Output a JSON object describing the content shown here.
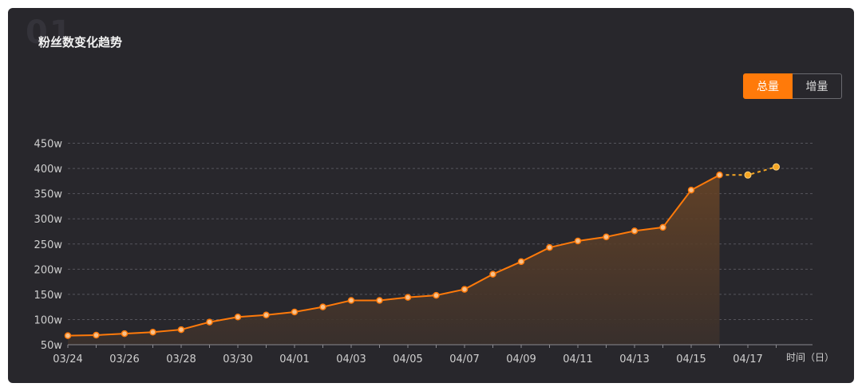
{
  "watermark": "01",
  "title": "粉丝数变化趋势",
  "toggle": {
    "total_label": "总量",
    "increment_label": "增量",
    "selected": "总量"
  },
  "colors": {
    "line": "#ff7a0a",
    "forecast": "#f5a623",
    "point_fill": "#f7c08a",
    "grid": "#55555c",
    "area_top": "#6a4526",
    "area_bottom": "#3a302c"
  },
  "chart_data": {
    "type": "line",
    "title": "粉丝数变化趋势",
    "xlabel": "时间（日）",
    "ylabel": "",
    "ylim": [
      50,
      450
    ],
    "y_unit": "w",
    "y_ticks": [
      "50w",
      "100w",
      "150w",
      "200w",
      "250w",
      "300w",
      "350w",
      "400w",
      "450w"
    ],
    "x_tick_labels": [
      "03/24",
      "03/26",
      "03/28",
      "03/30",
      "04/01",
      "04/03",
      "04/05",
      "04/07",
      "04/09",
      "04/11",
      "04/13",
      "04/15",
      "04/17"
    ],
    "grid": true,
    "x": [
      "03/24",
      "03/25",
      "03/26",
      "03/27",
      "03/28",
      "03/29",
      "03/30",
      "03/31",
      "04/01",
      "04/02",
      "04/03",
      "04/04",
      "04/05",
      "04/06",
      "04/07",
      "04/08",
      "04/09",
      "04/10",
      "04/11",
      "04/12",
      "04/13",
      "04/14",
      "04/15",
      "04/16",
      "04/17",
      "04/18"
    ],
    "series": [
      {
        "name": "",
        "style": "solid",
        "values": [
          68,
          69,
          72,
          75,
          80,
          95,
          105,
          109,
          115,
          125,
          138,
          138,
          144,
          148,
          160,
          190,
          215,
          243,
          256,
          264,
          276,
          283,
          357,
          387,
          null,
          null
        ]
      },
      {
        "name": "",
        "style": "dashed",
        "values": [
          null,
          null,
          null,
          null,
          null,
          null,
          null,
          null,
          null,
          null,
          null,
          null,
          null,
          null,
          null,
          null,
          null,
          null,
          null,
          null,
          null,
          null,
          null,
          387,
          387,
          403
        ]
      }
    ]
  }
}
